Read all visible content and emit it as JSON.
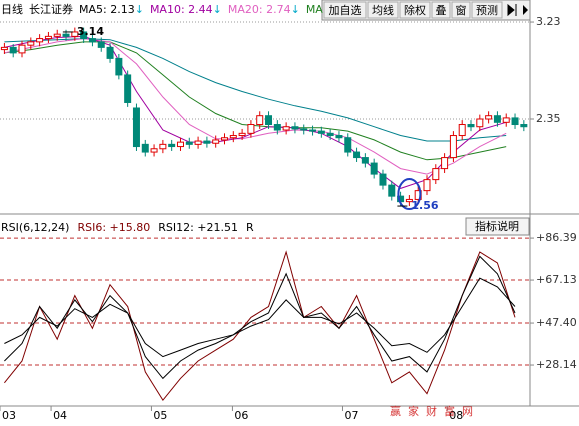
{
  "chart_data": [
    {
      "type": "candlestick",
      "header": [
        "日线",
        "长江证券"
      ],
      "ma_labels": [
        {
          "label": "MA5: 2.13",
          "color": "#000000"
        },
        {
          "label": "MA10: 2.44",
          "color": "#a000a0"
        },
        {
          "label": "MA20: 2.74",
          "color": "#e060c0"
        },
        {
          "label": "MA",
          "color": "#208020"
        }
      ],
      "arrow": "↓",
      "arrow_color": "#00a8c8",
      "x": [
        0,
        1,
        2,
        3,
        4,
        5,
        6,
        7,
        8,
        9,
        10,
        11,
        12,
        13,
        14,
        15,
        16,
        17,
        18,
        19,
        20,
        21,
        22,
        23,
        24,
        25,
        26,
        27,
        28,
        29,
        30,
        31,
        32,
        33,
        34,
        35,
        36,
        37,
        38,
        39,
        40,
        41,
        42,
        43,
        44,
        45,
        46,
        47,
        48,
        49,
        50,
        51,
        52,
        53,
        54,
        55,
        56,
        57,
        58,
        59
      ],
      "open": [
        2.98,
        3.0,
        2.95,
        3.02,
        3.05,
        3.08,
        3.1,
        3.12,
        3.1,
        3.14,
        3.08,
        3.05,
        3.0,
        2.9,
        2.75,
        2.45,
        2.12,
        2.05,
        2.08,
        2.12,
        2.1,
        2.14,
        2.12,
        2.15,
        2.13,
        2.16,
        2.18,
        2.2,
        2.22,
        2.3,
        2.38,
        2.3,
        2.25,
        2.28,
        2.26,
        2.25,
        2.24,
        2.22,
        2.2,
        2.18,
        2.05,
        2.0,
        1.95,
        1.85,
        1.75,
        1.65,
        1.6,
        1.62,
        1.7,
        1.8,
        1.9,
        2.0,
        2.2,
        2.3,
        2.28,
        2.35,
        2.38,
        2.32,
        2.36,
        2.3
      ],
      "high": [
        3.04,
        3.03,
        3.06,
        3.09,
        3.12,
        3.14,
        3.16,
        3.16,
        3.18,
        3.18,
        3.12,
        3.09,
        3.04,
        2.94,
        2.79,
        2.49,
        2.16,
        2.12,
        2.16,
        2.16,
        2.18,
        2.18,
        2.19,
        2.19,
        2.2,
        2.22,
        2.24,
        2.26,
        2.34,
        2.42,
        2.42,
        2.34,
        2.32,
        2.32,
        2.3,
        2.29,
        2.28,
        2.26,
        2.24,
        2.22,
        2.09,
        2.04,
        1.99,
        1.89,
        1.79,
        1.69,
        1.66,
        1.74,
        1.84,
        1.94,
        2.04,
        2.24,
        2.34,
        2.34,
        2.39,
        2.42,
        2.42,
        2.4,
        2.4,
        2.34
      ],
      "low": [
        2.94,
        2.91,
        2.91,
        2.98,
        3.01,
        3.04,
        3.06,
        3.06,
        3.06,
        3.04,
        3.01,
        2.96,
        2.86,
        2.71,
        2.46,
        2.06,
        2.01,
        2.01,
        2.04,
        2.06,
        2.06,
        2.08,
        2.08,
        2.09,
        2.09,
        2.12,
        2.14,
        2.16,
        2.18,
        2.26,
        2.26,
        2.21,
        2.21,
        2.22,
        2.21,
        2.2,
        2.18,
        2.16,
        2.14,
        2.01,
        1.96,
        1.91,
        1.81,
        1.71,
        1.61,
        1.56,
        1.56,
        1.58,
        1.66,
        1.76,
        1.86,
        1.96,
        2.16,
        2.24,
        2.24,
        2.31,
        2.28,
        2.28,
        2.26,
        2.24
      ],
      "close": [
        3.0,
        2.95,
        3.02,
        3.05,
        3.08,
        3.1,
        3.12,
        3.1,
        3.14,
        3.08,
        3.05,
        3.0,
        2.9,
        2.75,
        2.5,
        2.1,
        2.05,
        2.08,
        2.12,
        2.1,
        2.14,
        2.12,
        2.15,
        2.13,
        2.16,
        2.18,
        2.2,
        2.22,
        2.3,
        2.38,
        2.3,
        2.25,
        2.28,
        2.26,
        2.25,
        2.24,
        2.22,
        2.2,
        2.18,
        2.05,
        2.0,
        1.95,
        1.85,
        1.75,
        1.65,
        1.6,
        1.62,
        1.7,
        1.8,
        1.9,
        2.0,
        2.2,
        2.3,
        2.28,
        2.35,
        2.38,
        2.32,
        2.36,
        2.3,
        2.28
      ],
      "up_color": "#e00000",
      "down_color": "#008878",
      "series": [
        {
          "color": "#00808c",
          "x": [
            0,
            3,
            6,
            9,
            12,
            15,
            18,
            21,
            24,
            27,
            30,
            33,
            36,
            39,
            42,
            45,
            48,
            51,
            54,
            57
          ],
          "values": [
            3.05,
            3.06,
            3.07,
            3.08,
            3.07,
            3.0,
            2.9,
            2.78,
            2.68,
            2.6,
            2.53,
            2.47,
            2.42,
            2.36,
            2.28,
            2.2,
            2.15,
            2.15,
            2.18,
            2.2
          ]
        },
        {
          "color": "#208020",
          "x": [
            0,
            3,
            6,
            9,
            12,
            15,
            18,
            21,
            24,
            27,
            30,
            33,
            36,
            39,
            42,
            45,
            48,
            51,
            54,
            57
          ],
          "values": [
            2.95,
            2.98,
            3.02,
            3.05,
            3.05,
            2.95,
            2.75,
            2.55,
            2.4,
            2.3,
            2.28,
            2.27,
            2.27,
            2.24,
            2.16,
            2.05,
            1.98,
            2.0,
            2.05,
            2.1
          ]
        },
        {
          "color": "#e060c0",
          "x": [
            0,
            3,
            6,
            9,
            12,
            15,
            18,
            21,
            24,
            27,
            30,
            33,
            36,
            39,
            42,
            45,
            48,
            51,
            54,
            57
          ],
          "values": [
            2.95,
            3.0,
            3.05,
            3.08,
            3.05,
            2.85,
            2.55,
            2.3,
            2.17,
            2.17,
            2.22,
            2.25,
            2.24,
            2.18,
            2.05,
            1.9,
            1.85,
            1.95,
            2.1,
            2.22
          ]
        },
        {
          "color": "#a000a0",
          "x": [
            0,
            3,
            6,
            9,
            12,
            15,
            18,
            21,
            24,
            27,
            30,
            33,
            36,
            39,
            42,
            45,
            48,
            51,
            54,
            57
          ],
          "values": [
            3.0,
            3.05,
            3.09,
            3.1,
            3.02,
            2.6,
            2.25,
            2.14,
            2.14,
            2.18,
            2.28,
            2.27,
            2.22,
            2.1,
            1.9,
            1.72,
            1.8,
            2.05,
            2.25,
            2.32
          ]
        }
      ],
      "annotations": [
        {
          "text": "3.14",
          "x": 8,
          "y": 3.14
        },
        {
          "text": "1.56",
          "x": 46,
          "y": 1.56
        }
      ],
      "xlim": [
        -0.5,
        59.7
      ],
      "ylim": [
        1.497,
        3.43
      ],
      "yticks": [
        3.23,
        2.35
      ],
      "grid": true
    },
    {
      "type": "line",
      "header": [
        {
          "label": "RSI(6,12,24)",
          "color": "#000000"
        },
        {
          "label": "RSI6: +15.80",
          "color": "#800000"
        },
        {
          "label": "RSI12: +21.51",
          "color": "#000000"
        },
        {
          "label": "R",
          "color": "#000000"
        }
      ],
      "button": "指标说明",
      "x": [
        0,
        2,
        4,
        6,
        8,
        10,
        12,
        14,
        16,
        18,
        20,
        22,
        24,
        26,
        28,
        30,
        32,
        34,
        36,
        38,
        40,
        42,
        44,
        46,
        48,
        50,
        52,
        54,
        56,
        58
      ],
      "series": [
        {
          "color": "#800000",
          "values": [
            20,
            30,
            55,
            40,
            60,
            45,
            65,
            55,
            25,
            12,
            22,
            30,
            35,
            40,
            50,
            55,
            80,
            50,
            55,
            45,
            60,
            40,
            20,
            25,
            15,
            35,
            60,
            80,
            75,
            50
          ]
        },
        {
          "color": "#000000",
          "values": [
            30,
            38,
            55,
            45,
            58,
            48,
            60,
            52,
            32,
            22,
            30,
            35,
            38,
            42,
            48,
            52,
            70,
            50,
            52,
            45,
            55,
            42,
            30,
            32,
            25,
            40,
            60,
            78,
            70,
            52
          ]
        },
        {
          "color": "#000000",
          "values": [
            38,
            42,
            50,
            46,
            54,
            50,
            56,
            52,
            38,
            32,
            35,
            38,
            40,
            42,
            46,
            49,
            58,
            50,
            50,
            47,
            52,
            45,
            37,
            38,
            34,
            42,
            55,
            68,
            64,
            55
          ]
        }
      ],
      "xlim": [
        -0.5,
        59.7
      ],
      "ylim": [
        9.8,
        95.6
      ],
      "yticks": [
        {
          "value": 86.39,
          "label": "+86.39"
        },
        {
          "value": 67.13,
          "label": "+67.13"
        },
        {
          "value": 47.4,
          "label": "+47.40"
        },
        {
          "value": 28.14,
          "label": "+28.14"
        }
      ],
      "grid": true,
      "xticks": [
        {
          "value": -0.5,
          "label": "03"
        },
        {
          "value": 5.3,
          "label": "04"
        },
        {
          "value": 16.7,
          "label": "05"
        },
        {
          "value": 25.9,
          "label": "06"
        },
        {
          "value": 38.4,
          "label": "07"
        },
        {
          "value": 50.3,
          "label": "08"
        }
      ]
    }
  ],
  "toolbar": [
    "加自选",
    "均线",
    "除权",
    "叠",
    "窗",
    "预测"
  ],
  "watermark": "赢家财富网"
}
